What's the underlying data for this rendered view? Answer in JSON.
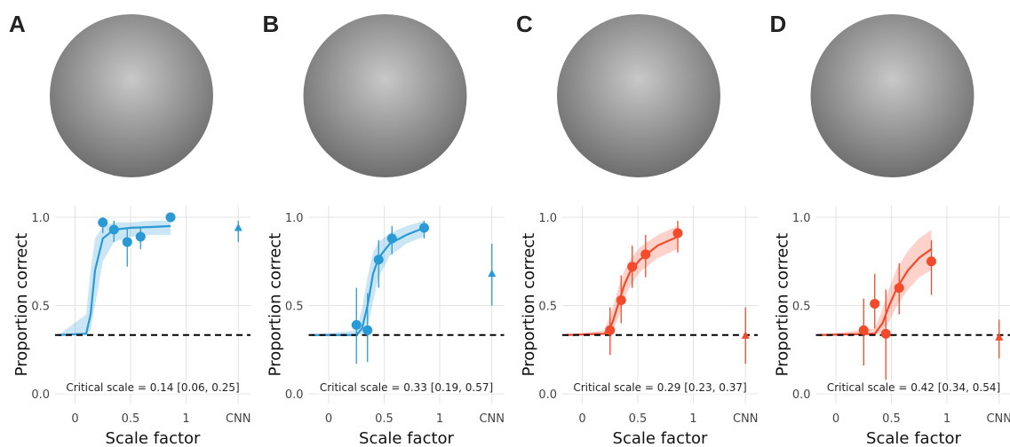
{
  "chart_data": [
    {
      "type": "scatter",
      "panel": "A",
      "color": "#2a9ad6",
      "xlabel": "Scale factor",
      "ylabel": "Proportion correct",
      "annotation": "Critical scale = 0.14 [0.06, 0.25]",
      "xlim": [
        -0.18,
        1.58
      ],
      "ylim": [
        -0.055,
        1.065
      ],
      "xticks": [
        0,
        0.5,
        1,
        {
          "value": 1.47,
          "label": "CNN"
        }
      ],
      "yticks": [
        {
          "value": 0,
          "label": "0.0"
        },
        0.5,
        {
          "value": 1,
          "label": "1.0"
        }
      ],
      "grid": true,
      "chance": 0.333,
      "x": [
        0.25,
        0.35,
        0.47,
        0.59,
        0.86
      ],
      "values": [
        0.97,
        0.93,
        0.86,
        0.89,
        1.0
      ],
      "ci_low": [
        0.91,
        0.86,
        0.72,
        0.82,
        1.0
      ],
      "ci_high": [
        1.0,
        0.98,
        0.94,
        0.94,
        1.0
      ],
      "cnn": {
        "value": 0.94,
        "ci_low": 0.86,
        "ci_high": 0.98
      },
      "fit": {
        "x": [
          -0.15,
          0.1,
          0.14,
          0.18,
          0.25,
          0.35,
          0.5,
          0.7,
          0.86
        ],
        "y": [
          0.333,
          0.34,
          0.45,
          0.7,
          0.88,
          0.93,
          0.94,
          0.945,
          0.95
        ],
        "low": [
          0.333,
          0.333,
          0.36,
          0.5,
          0.75,
          0.86,
          0.89,
          0.9,
          0.9
        ],
        "high": [
          0.333,
          0.45,
          0.7,
          0.88,
          0.95,
          0.97,
          0.97,
          0.98,
          0.98
        ]
      }
    },
    {
      "type": "scatter",
      "panel": "B",
      "color": "#2a9ad6",
      "xlabel": "Scale factor",
      "ylabel": "Proportion correct",
      "annotation": "Critical scale = 0.33 [0.19, 0.57]",
      "xlim": [
        -0.18,
        1.58
      ],
      "ylim": [
        -0.055,
        1.065
      ],
      "xticks": [
        0,
        0.5,
        1,
        {
          "value": 1.47,
          "label": "CNN"
        }
      ],
      "yticks": [
        {
          "value": 0,
          "label": "0.0"
        },
        0.5,
        {
          "value": 1,
          "label": "1.0"
        }
      ],
      "grid": true,
      "chance": 0.333,
      "x": [
        0.25,
        0.35,
        0.45,
        0.57,
        0.86
      ],
      "values": [
        0.39,
        0.36,
        0.76,
        0.88,
        0.94
      ],
      "ci_low": [
        0.17,
        0.18,
        0.6,
        0.79,
        0.88
      ],
      "ci_high": [
        0.6,
        0.57,
        0.87,
        0.95,
        0.98
      ],
      "cnn": {
        "value": 0.68,
        "ci_low": 0.5,
        "ci_high": 0.85
      },
      "fit": {
        "x": [
          -0.15,
          0.25,
          0.3,
          0.35,
          0.4,
          0.45,
          0.55,
          0.7,
          0.86
        ],
        "y": [
          0.333,
          0.333,
          0.37,
          0.5,
          0.68,
          0.77,
          0.85,
          0.9,
          0.94
        ],
        "low": [
          0.333,
          0.333,
          0.34,
          0.38,
          0.52,
          0.66,
          0.78,
          0.85,
          0.89
        ],
        "high": [
          0.333,
          0.36,
          0.48,
          0.66,
          0.8,
          0.86,
          0.91,
          0.95,
          0.98
        ]
      }
    },
    {
      "type": "scatter",
      "panel": "C",
      "color": "#f24a2a",
      "xlabel": "Scale factor",
      "ylabel": "Proportion correct",
      "annotation": "Critical scale = 0.29 [0.23, 0.37]",
      "xlim": [
        -0.18,
        1.58
      ],
      "ylim": [
        -0.055,
        1.065
      ],
      "xticks": [
        0,
        0.5,
        1,
        {
          "value": 1.47,
          "label": "CNN"
        }
      ],
      "yticks": [
        {
          "value": 0,
          "label": "0.0"
        },
        0.5,
        {
          "value": 1,
          "label": "1.0"
        }
      ],
      "grid": true,
      "chance": 0.333,
      "x": [
        0.25,
        0.35,
        0.45,
        0.57,
        0.86
      ],
      "values": [
        0.36,
        0.53,
        0.72,
        0.79,
        0.91
      ],
      "ci_low": [
        0.22,
        0.4,
        0.6,
        0.66,
        0.8
      ],
      "ci_high": [
        0.49,
        0.67,
        0.84,
        0.9,
        0.98
      ],
      "cnn": {
        "value": 0.33,
        "ci_low": 0.17,
        "ci_high": 0.49
      },
      "fit": {
        "x": [
          -0.15,
          0.2,
          0.27,
          0.33,
          0.38,
          0.43,
          0.52,
          0.68,
          0.86
        ],
        "y": [
          0.333,
          0.34,
          0.4,
          0.52,
          0.62,
          0.69,
          0.76,
          0.84,
          0.89
        ],
        "low": [
          0.333,
          0.333,
          0.35,
          0.44,
          0.54,
          0.61,
          0.69,
          0.77,
          0.82
        ],
        "high": [
          0.333,
          0.36,
          0.48,
          0.61,
          0.7,
          0.76,
          0.83,
          0.9,
          0.95
        ]
      }
    },
    {
      "type": "scatter",
      "panel": "D",
      "color": "#f24a2a",
      "xlabel": "Scale factor",
      "ylabel": "Proportion correct",
      "annotation": "Critical scale = 0.42 [0.34, 0.54]",
      "xlim": [
        -0.18,
        1.58
      ],
      "ylim": [
        -0.055,
        1.065
      ],
      "xticks": [
        0,
        0.5,
        1,
        {
          "value": 1.47,
          "label": "CNN"
        }
      ],
      "yticks": [
        {
          "value": 0,
          "label": "0.0"
        },
        0.5,
        {
          "value": 1,
          "label": "1.0"
        }
      ],
      "grid": true,
      "chance": 0.333,
      "x": [
        0.25,
        0.35,
        0.45,
        0.57,
        0.86
      ],
      "values": [
        0.36,
        0.51,
        0.34,
        0.6,
        0.75
      ],
      "ci_low": [
        0.16,
        0.37,
        0.08,
        0.45,
        0.56
      ],
      "ci_high": [
        0.54,
        0.68,
        0.59,
        0.74,
        0.87
      ],
      "cnn": {
        "value": 0.32,
        "ci_low": 0.2,
        "ci_high": 0.42
      },
      "fit": {
        "x": [
          -0.15,
          0.35,
          0.42,
          0.48,
          0.55,
          0.65,
          0.75,
          0.86
        ],
        "y": [
          0.333,
          0.34,
          0.4,
          0.5,
          0.6,
          0.7,
          0.77,
          0.82
        ],
        "low": [
          0.333,
          0.333,
          0.35,
          0.41,
          0.5,
          0.59,
          0.66,
          0.7
        ],
        "high": [
          0.333,
          0.37,
          0.48,
          0.6,
          0.71,
          0.81,
          0.88,
          0.93
        ]
      }
    }
  ]
}
